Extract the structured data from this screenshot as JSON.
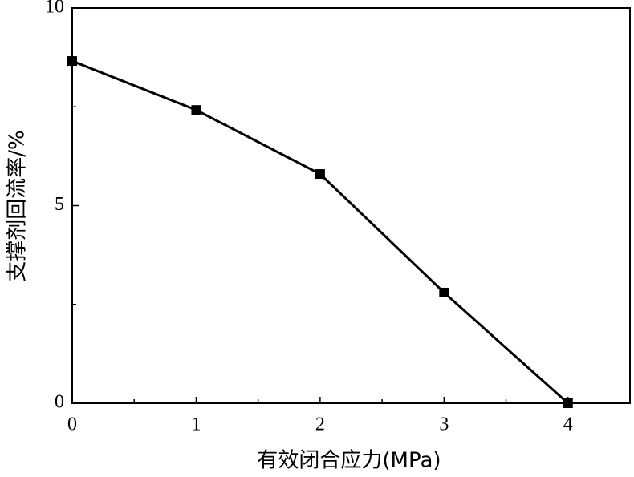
{
  "chart_data": {
    "type": "line",
    "x_label": "有效闭合应力(MPa)",
    "y_label": "支撑剂回流率/%",
    "x": [
      0,
      1,
      2,
      3,
      4
    ],
    "series": [
      {
        "values": [
          8.66,
          7.42,
          5.8,
          2.8,
          0
        ],
        "color": "#000000"
      }
    ],
    "xlim": [
      0,
      4.5
    ],
    "ylim": [
      0,
      10
    ],
    "xticks": [
      0,
      1,
      2,
      3,
      4
    ],
    "yticks": [
      0,
      5,
      10
    ],
    "xminorticks": [
      0.5,
      1.5,
      2.5,
      3.5
    ],
    "yminorticks": [
      2.5,
      7.5
    ]
  }
}
